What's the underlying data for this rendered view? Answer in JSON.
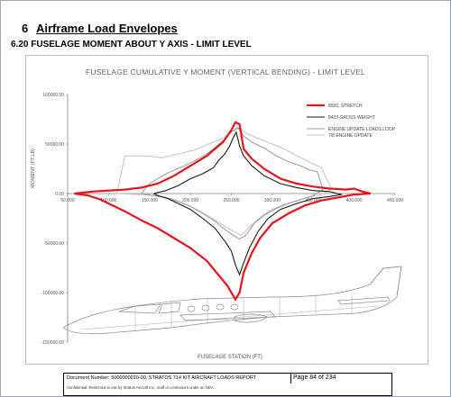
{
  "document": {
    "section_number": "6",
    "section_title": "Airframe Load Envelopes",
    "subsection_title": "6.20 FUSELAGE MOMENT ABOUT Y AXIS - LIMIT LEVEL"
  },
  "footer": {
    "doc_text": "Document Number: 5000000010-00, STRATOS 714 KIT AIRCRAFT LOADS REPORT",
    "page_text": "Page 84 of 234",
    "note_text": "Confidential: Restricted to use by Stratos Aircraft Inc., staff or contractors under an NDA."
  },
  "colors": {
    "stretch": "#e3161d",
    "gross": "#1a1a1a",
    "engine_loop": "#9a9a9a",
    "engine_update": "#c4c4c4",
    "axis": "#808080",
    "frame": "#9aa7b8"
  },
  "chart_data": {
    "type": "line",
    "title": "FUSELAGE CUMULATIVE Y MOMENT (VERTICAL BENDING) - LIMIT LEVEL",
    "xlabel": "FUSELAGE STATION (FT)",
    "ylabel": "MOMENT (FT.LB)",
    "xlim": [
      50,
      450
    ],
    "ylim": [
      -150000,
      100000
    ],
    "x_ticks": [
      "50.000",
      "100.000",
      "150.000",
      "200.000",
      "250.000",
      "300.000",
      "350.000",
      "400.000",
      "450.000"
    ],
    "y_ticks": [
      "100000.00",
      "50000.00",
      "0.00",
      "-50000.00",
      "-100000.00",
      "-150000.00"
    ],
    "grid": false,
    "legend_position": "top-right",
    "background_illustration": "aircraft-side-view",
    "series": [
      {
        "name": "8550, STRETCH",
        "color_key": "stretch",
        "points": [
          [
            58,
            0
          ],
          [
            80,
            2000
          ],
          [
            100,
            3000
          ],
          [
            120,
            4000
          ],
          [
            140,
            6000
          ],
          [
            160,
            10000
          ],
          [
            180,
            18000
          ],
          [
            200,
            28000
          ],
          [
            220,
            38000
          ],
          [
            240,
            52000
          ],
          [
            250,
            64000
          ],
          [
            255,
            72000
          ],
          [
            260,
            70000
          ],
          [
            265,
            45000
          ],
          [
            275,
            35000
          ],
          [
            290,
            25000
          ],
          [
            310,
            15000
          ],
          [
            330,
            10000
          ],
          [
            350,
            7000
          ],
          [
            370,
            5000
          ],
          [
            390,
            4000
          ],
          [
            400,
            5000
          ],
          [
            410,
            2000
          ],
          [
            420,
            0
          ],
          [
            400,
            -1000
          ],
          [
            380,
            -4000
          ],
          [
            360,
            -7000
          ],
          [
            340,
            -12000
          ],
          [
            320,
            -20000
          ],
          [
            300,
            -30000
          ],
          [
            285,
            -45000
          ],
          [
            275,
            -60000
          ],
          [
            265,
            -80000
          ],
          [
            260,
            -100000
          ],
          [
            255,
            -107000
          ],
          [
            245,
            -93000
          ],
          [
            232,
            -80000
          ],
          [
            220,
            -68000
          ],
          [
            200,
            -55000
          ],
          [
            180,
            -45000
          ],
          [
            160,
            -35000
          ],
          [
            140,
            -27000
          ],
          [
            120,
            -18000
          ],
          [
            105,
            -12000
          ],
          [
            90,
            -6000
          ],
          [
            75,
            -2000
          ],
          [
            58,
            0
          ]
        ]
      },
      {
        "name": "8423 GROSS WEIGHT",
        "color_key": "gross",
        "points": [
          [
            155,
            0
          ],
          [
            170,
            3000
          ],
          [
            185,
            8000
          ],
          [
            200,
            15000
          ],
          [
            215,
            20000
          ],
          [
            228,
            26000
          ],
          [
            235,
            34000
          ],
          [
            242,
            40000
          ],
          [
            248,
            48000
          ],
          [
            252,
            56000
          ],
          [
            256,
            62000
          ],
          [
            260,
            48000
          ],
          [
            265,
            38000
          ],
          [
            275,
            28000
          ],
          [
            290,
            18000
          ],
          [
            310,
            10000
          ],
          [
            330,
            6000
          ],
          [
            350,
            3000
          ],
          [
            370,
            2000
          ],
          [
            385,
            -1000
          ],
          [
            370,
            -3000
          ],
          [
            350,
            -5000
          ],
          [
            330,
            -10000
          ],
          [
            310,
            -16000
          ],
          [
            295,
            -25000
          ],
          [
            283,
            -38000
          ],
          [
            272,
            -55000
          ],
          [
            265,
            -70000
          ],
          [
            260,
            -82000
          ],
          [
            255,
            -72000
          ],
          [
            250,
            -58000
          ],
          [
            242,
            -48000
          ],
          [
            230,
            -35000
          ],
          [
            215,
            -25000
          ],
          [
            200,
            -16000
          ],
          [
            185,
            -10000
          ],
          [
            172,
            -5000
          ],
          [
            160,
            -2000
          ],
          [
            155,
            0
          ]
        ]
      },
      {
        "name": "ENGINE UPDATE LOADS LOOP",
        "color_key": "engine_loop",
        "points": [
          [
            140,
            0
          ],
          [
            150,
            10000
          ],
          [
            160,
            15000
          ],
          [
            175,
            22000
          ],
          [
            190,
            27000
          ],
          [
            205,
            33000
          ],
          [
            220,
            40000
          ],
          [
            232,
            48000
          ],
          [
            242,
            55000
          ],
          [
            250,
            62000
          ],
          [
            258,
            67000
          ],
          [
            265,
            58000
          ],
          [
            275,
            52000
          ],
          [
            290,
            46000
          ],
          [
            305,
            38000
          ],
          [
            320,
            32000
          ],
          [
            335,
            28000
          ],
          [
            345,
            24000
          ],
          [
            355,
            22000
          ],
          [
            362,
            4000
          ],
          [
            350,
            -2000
          ],
          [
            335,
            -6000
          ],
          [
            320,
            -10000
          ],
          [
            305,
            -15000
          ],
          [
            290,
            -22000
          ],
          [
            278,
            -30000
          ],
          [
            268,
            -42000
          ],
          [
            260,
            -46000
          ],
          [
            252,
            -42000
          ],
          [
            242,
            -36000
          ],
          [
            230,
            -28000
          ],
          [
            215,
            -20000
          ],
          [
            200,
            -13000
          ],
          [
            185,
            -8000
          ],
          [
            170,
            -4000
          ],
          [
            155,
            -2000
          ],
          [
            140,
            0
          ]
        ]
      },
      {
        "name": "7/8 ENGINE UPDATE",
        "color_key": "engine_update",
        "points": [
          [
            110,
            0
          ],
          [
            120,
            38000
          ],
          [
            150,
            38000
          ],
          [
            165,
            36000
          ],
          [
            185,
            40000
          ],
          [
            205,
            44000
          ],
          [
            222,
            50000
          ],
          [
            240,
            56000
          ],
          [
            252,
            63000
          ],
          [
            260,
            66000
          ],
          [
            270,
            60000
          ],
          [
            285,
            55000
          ],
          [
            300,
            50000
          ],
          [
            315,
            45000
          ],
          [
            330,
            38000
          ],
          [
            345,
            32000
          ],
          [
            360,
            26000
          ],
          [
            372,
            5000
          ],
          [
            360,
            -1000
          ],
          [
            345,
            -4000
          ],
          [
            330,
            -7000
          ],
          [
            315,
            -11000
          ],
          [
            300,
            -16000
          ],
          [
            285,
            -24000
          ],
          [
            272,
            -34000
          ],
          [
            262,
            -42000
          ],
          [
            252,
            -38000
          ],
          [
            240,
            -32000
          ],
          [
            225,
            -24000
          ],
          [
            210,
            -17000
          ],
          [
            195,
            -11000
          ],
          [
            180,
            -6000
          ],
          [
            165,
            -3000
          ],
          [
            140,
            -1000
          ],
          [
            110,
            0
          ]
        ]
      }
    ]
  }
}
